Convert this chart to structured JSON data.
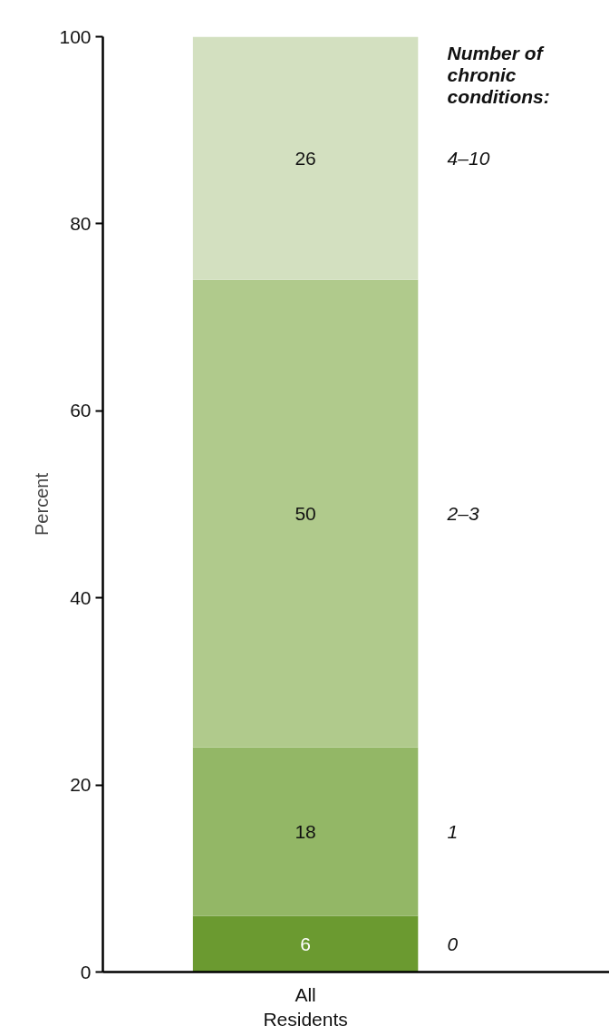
{
  "chart_data": {
    "type": "bar",
    "stacked": true,
    "categories": [
      "All\nResidents"
    ],
    "ylabel": "Percent",
    "legend_title": "Number of chronic conditions:",
    "ylim": [
      0,
      100
    ],
    "yticks": [
      0,
      20,
      40,
      60,
      80,
      100
    ],
    "data_labels": true,
    "grid": false,
    "series": [
      {
        "name": "0",
        "color": "#6b9a30",
        "values": [
          6
        ]
      },
      {
        "name": "1",
        "color": "#93b766",
        "values": [
          18
        ]
      },
      {
        "name": "2–3",
        "color": "#b0ca8c",
        "values": [
          50
        ]
      },
      {
        "name": "4–10",
        "color": "#d3e0c0",
        "values": [
          26
        ]
      }
    ]
  }
}
